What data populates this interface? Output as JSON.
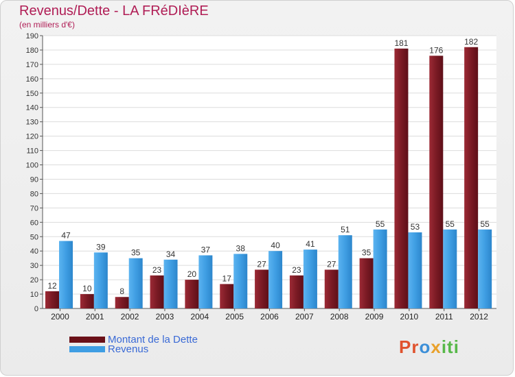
{
  "title": "Revenus/Dette - LA FRéDIèRE",
  "subtitle": "(en milliers d'€)",
  "colors": {
    "debt": "#8a1f2a",
    "revenue": "#3f9ee3",
    "title": "#b01d55",
    "axis": "#333333"
  },
  "legend": [
    {
      "label": "Montant de la Dette",
      "color": "#6a1018"
    },
    {
      "label": "Revenus",
      "color": "#3f9ee3"
    }
  ],
  "logo_text": "Proxiti",
  "chart_data": {
    "type": "bar",
    "categories": [
      "2000",
      "2001",
      "2002",
      "2003",
      "2004",
      "2005",
      "2006",
      "2007",
      "2008",
      "2009",
      "2010",
      "2011",
      "2012"
    ],
    "series": [
      {
        "name": "Montant de la Dette",
        "values": [
          12,
          10,
          8,
          23,
          20,
          17,
          27,
          23,
          27,
          35,
          181,
          176,
          182
        ]
      },
      {
        "name": "Revenus",
        "values": [
          47,
          39,
          35,
          34,
          37,
          38,
          40,
          41,
          51,
          55,
          53,
          55,
          55
        ]
      }
    ],
    "ylim": [
      0,
      190
    ],
    "yticks": [
      0,
      10,
      20,
      30,
      40,
      50,
      60,
      70,
      80,
      90,
      100,
      110,
      120,
      130,
      140,
      150,
      160,
      170,
      180,
      190
    ],
    "grid": true
  }
}
